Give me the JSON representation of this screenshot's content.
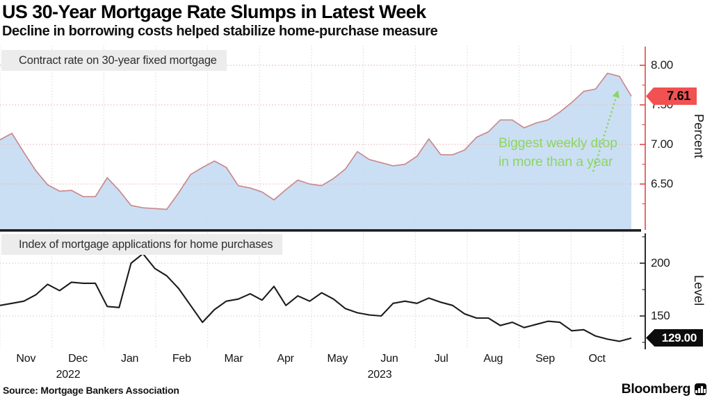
{
  "header": {
    "title": "US 30-Year Mortgage Rate Slumps in Latest Week",
    "subtitle": "Decline in borrowing costs helped stabilize home-purchase measure"
  },
  "footer": {
    "source": "Source: Mortgage Bankers Association",
    "brand": "Bloomberg",
    "brand_icon": "bar-chart-icon"
  },
  "x_axis": {
    "months": [
      "Nov",
      "Dec",
      "Jan",
      "Feb",
      "Mar",
      "Apr",
      "May",
      "Jun",
      "Jul",
      "Aug",
      "Sep",
      "Oct"
    ],
    "years": [
      {
        "label": "2022",
        "month_index": 1
      },
      {
        "label": "2023",
        "month_index": 7
      }
    ]
  },
  "chart_data": [
    {
      "type": "area",
      "legend": "Contract rate on 30-year fixed mortgage",
      "legend_marker": "red-square-icon",
      "ylabel": "Percent",
      "ylim": [
        5.9,
        8.25
      ],
      "grid": true,
      "legend_position": "top-left",
      "yticks_major_labels": [
        "8.00",
        "7.50",
        "7.00",
        "6.50"
      ],
      "yticks_major_values": [
        8.0,
        7.5,
        7.0,
        6.5
      ],
      "yticks_minor_values": [
        7.75,
        7.25,
        6.75,
        6.25
      ],
      "last_value_label": "7.61",
      "last_value": 7.61,
      "x_weekly_span": "Oct 2022 - Nov 2023",
      "values": [
        7.06,
        7.14,
        6.9,
        6.67,
        6.49,
        6.41,
        6.42,
        6.34,
        6.34,
        6.58,
        6.42,
        6.23,
        6.2,
        6.19,
        6.18,
        6.39,
        6.62,
        6.71,
        6.79,
        6.71,
        6.48,
        6.45,
        6.4,
        6.3,
        6.43,
        6.55,
        6.5,
        6.48,
        6.57,
        6.69,
        6.91,
        6.81,
        6.77,
        6.73,
        6.75,
        6.85,
        7.07,
        6.87,
        6.87,
        6.93,
        7.09,
        7.16,
        7.31,
        7.31,
        7.21,
        7.27,
        7.31,
        7.41,
        7.53,
        7.67,
        7.7,
        7.9,
        7.86,
        7.61
      ],
      "annotation": {
        "line1": "Biggest weekly drop",
        "line2": "in more than a year",
        "color": "#8cd564",
        "arrow": "dotted-arrow-to-peak"
      },
      "colors": {
        "fill": "#cbdff4",
        "line": "#c9898d",
        "axis": "#e05252",
        "gridline_h": "#ecb9b9",
        "gridline_v": "#d4d4d4",
        "legend_marker": "#f2696b",
        "badge_bg": "#f15151",
        "badge_text": "#000000"
      }
    },
    {
      "type": "line",
      "legend": "Index of mortgage applications for home purchases",
      "legend_marker": "black-square-icon",
      "ylabel": "Level",
      "ylim": [
        117,
        229
      ],
      "grid": true,
      "legend_position": "top-left",
      "yticks_major_labels": [
        "200",
        "150"
      ],
      "yticks_major_values": [
        200,
        150
      ],
      "yticks_minor_values": [
        225,
        175,
        125
      ],
      "last_value_label": "129.00",
      "last_value": 129,
      "values": [
        160,
        162,
        164,
        170,
        180,
        174,
        182,
        181,
        181,
        159,
        158,
        200,
        209,
        195,
        188,
        176,
        160,
        144,
        156,
        164,
        166,
        171,
        165,
        178,
        160,
        169,
        164,
        172,
        166,
        157,
        153,
        151,
        150,
        162,
        164,
        162,
        167,
        163,
        160,
        152,
        148,
        148,
        141,
        144,
        139,
        142,
        145,
        144,
        136,
        137,
        131,
        128,
        126,
        129
      ],
      "colors": {
        "line": "#1b1b1b",
        "axis": "#2b2b2b",
        "gridline_h": "#d4d4d4",
        "gridline_v": "#d4d4d4",
        "legend_marker": "#141414",
        "badge_bg": "#0c0c0c",
        "badge_text": "#ffffff"
      }
    }
  ]
}
